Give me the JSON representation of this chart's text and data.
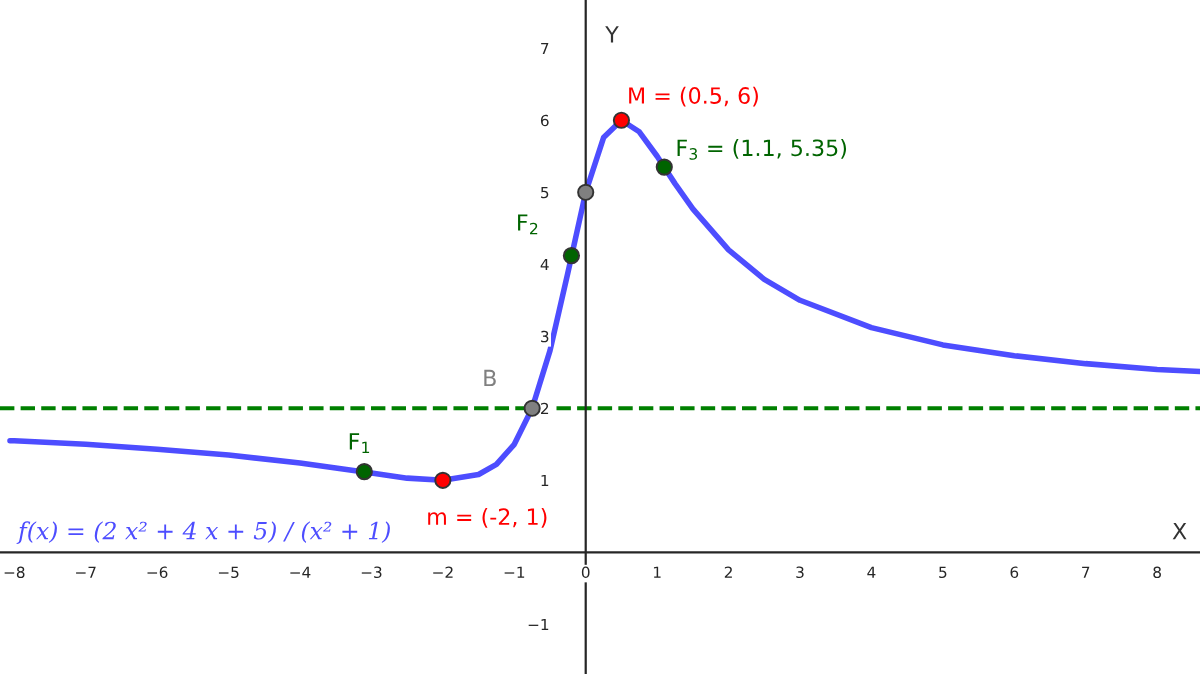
{
  "chart_data": {
    "type": "line",
    "xlabel": "X",
    "ylabel": "Y",
    "x": [
      -8.06,
      -8,
      -7,
      -6,
      -5,
      -4,
      -3.5,
      -3,
      -2.5,
      -2,
      -1.5,
      -1.25,
      -1,
      -0.75,
      -0.5,
      -0.25,
      0,
      0.25,
      0.5,
      0.75,
      1,
      1.25,
      1.5,
      2,
      2.5,
      3,
      4,
      5,
      6,
      7,
      8,
      8.6
    ],
    "series": [
      {
        "color": "#4d4dff",
        "values": [
          1.55,
          1.55,
          1.5,
          1.43,
          1.35,
          1.24,
          1.17,
          1.1,
          1.03,
          1,
          1.08,
          1.22,
          1.5,
          2,
          2.8,
          3.88,
          5,
          5.76,
          6,
          5.84,
          5.5,
          5.12,
          4.77,
          4.2,
          3.79,
          3.5,
          3.12,
          2.88,
          2.73,
          2.62,
          2.54,
          2.51
        ]
      },
      {
        "type": "scatter",
        "marker": "circle",
        "x": [
          -3.1,
          -2,
          -0.75,
          -0.2,
          0,
          0.5,
          1.1
        ],
        "values": [
          1.12,
          1,
          2,
          4.12,
          5,
          6,
          5.35
        ],
        "colors": [
          "#006400",
          "#ff0000",
          "#808080",
          "#006400",
          "#808080",
          "#ff0000",
          "#006400"
        ]
      }
    ],
    "ref_lines": [
      {
        "axis": "y",
        "value": 2,
        "color": "#008000",
        "line_style": "dashed"
      }
    ],
    "annotations": [
      {
        "text": "F$_{1}$",
        "x": -3.1,
        "y": 1.12
      },
      {
        "text": "m = (-2, 1)",
        "x": -2,
        "y": 1
      },
      {
        "text": "B",
        "x": -0.75,
        "y": 2
      },
      {
        "text": "F$_{2}$",
        "x": -0.2,
        "y": 4.12
      },
      {
        "text": "M = (0.5, 6)",
        "x": 0.5,
        "y": 6
      },
      {
        "text": "F$_{3}$ = (1.1, 5.35)",
        "x": 1.1,
        "y": 5.35
      },
      "f(x) = (2 x² + 4 x + 5) / (x² + 1)"
    ],
    "xlim": [
      -8.2,
      8.6
    ],
    "ylim": [
      -1.69,
      7.67
    ],
    "xticks": [
      -8,
      -7,
      -6,
      -5,
      -4,
      -3,
      -2,
      -1,
      0,
      1,
      2,
      3,
      4,
      5,
      6,
      7,
      8
    ],
    "yticks": [
      -1,
      1,
      2,
      3,
      4,
      5,
      6,
      7
    ],
    "grid": false,
    "legend": false
  }
}
